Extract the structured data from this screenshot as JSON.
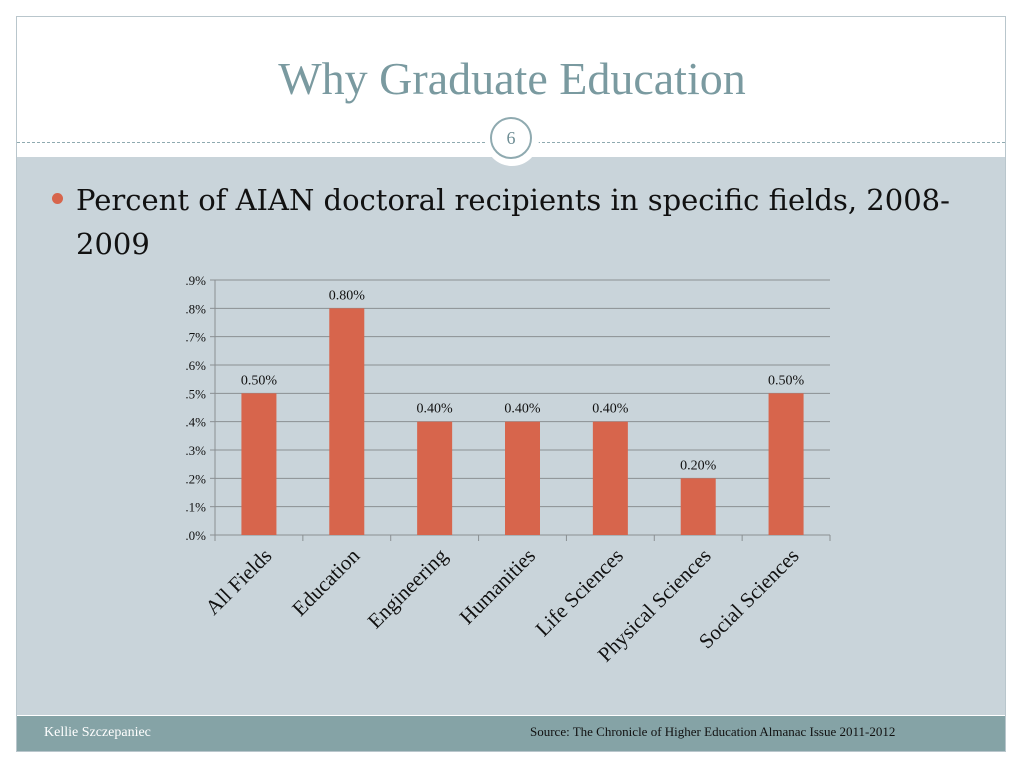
{
  "slide": {
    "title": "Why Graduate Education",
    "page_number": "6",
    "bullet": "Percent of AIAN doctoral recipients in specific fields, 2008-2009"
  },
  "footer": {
    "author": "Kellie Szczepaniec",
    "source": "Source: The Chronicle of Higher Education Almanac Issue 2011-2012"
  },
  "colors": {
    "bar": "#d7654c",
    "accent": "#85a3a6",
    "content_bg": "#c9d4da"
  },
  "chart_data": {
    "type": "bar",
    "categories": [
      "All Fields",
      "Education",
      "Engineering",
      "Humanities",
      "Life Sciences",
      "Physical Sciences",
      "Social Sciences"
    ],
    "values": [
      0.5,
      0.8,
      0.4,
      0.4,
      0.4,
      0.2,
      0.5
    ],
    "data_labels": [
      "0.50%",
      "0.80%",
      "0.40%",
      "0.40%",
      "0.40%",
      "0.20%",
      "0.50%"
    ],
    "y_ticks": [
      {
        "value": 0.0,
        "label": ".0%"
      },
      {
        "value": 0.1,
        "label": ".1%"
      },
      {
        "value": 0.2,
        "label": ".2%"
      },
      {
        "value": 0.3,
        "label": ".3%"
      },
      {
        "value": 0.4,
        "label": ".4%"
      },
      {
        "value": 0.5,
        "label": ".5%"
      },
      {
        "value": 0.6,
        "label": ".6%"
      },
      {
        "value": 0.7,
        "label": ".7%"
      },
      {
        "value": 0.8,
        "label": ".8%"
      },
      {
        "value": 0.9,
        "label": ".9%"
      }
    ],
    "ylim": [
      0,
      0.9
    ],
    "grid": true,
    "legend": "none"
  }
}
